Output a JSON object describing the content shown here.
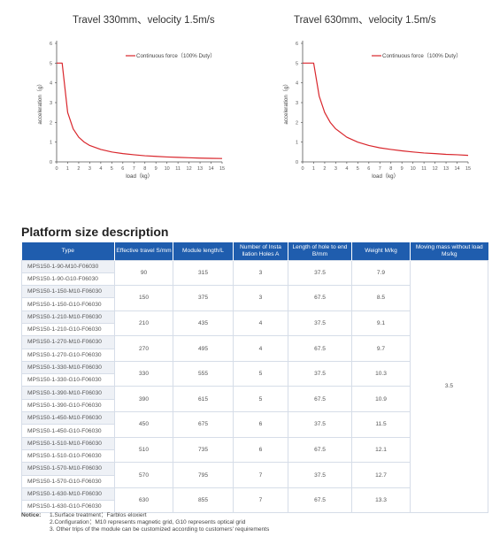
{
  "charts": [
    {
      "title": "Travel 330mm、velocity 1.5m/s",
      "xlabel": "load（kg）",
      "ylabel": "acceleration（g）",
      "legend": "Continuous force（100% Duty）",
      "line_color": "#d9262c",
      "chart_data": {
        "type": "line",
        "xlim": [
          0,
          15
        ],
        "ylim": [
          0,
          6
        ],
        "x_ticks": [
          "0",
          "1",
          "2",
          "3",
          "4",
          "5",
          "6",
          "7",
          "8",
          "9",
          "10",
          "11",
          "12",
          "13",
          "14",
          "15"
        ],
        "y_ticks": [
          "0",
          "1",
          "2",
          "3",
          "4",
          "5",
          "6"
        ],
        "series": [
          {
            "name": "Continuous force（100% Duty）",
            "x": [
              0,
              0.5,
              1,
              1.5,
              2,
              2.5,
              3,
              4,
              5,
              6,
              7,
              8,
              9,
              10,
              11,
              12,
              13,
              14,
              15
            ],
            "y": [
              5,
              5,
              2.5,
              1.67,
              1.25,
              1.0,
              0.83,
              0.63,
              0.5,
              0.42,
              0.36,
              0.31,
              0.28,
              0.25,
              0.23,
              0.21,
              0.19,
              0.18,
              0.17
            ]
          }
        ]
      }
    },
    {
      "title": "Travel 630mm、velocity 1.5m/s",
      "xlabel": "load（kg）",
      "ylabel": "acceleration（g）",
      "legend": "Continuous force（100% Duty）",
      "line_color": "#d9262c",
      "chart_data": {
        "type": "line",
        "xlim": [
          0,
          15
        ],
        "ylim": [
          0,
          6
        ],
        "x_ticks": [
          "0",
          "1",
          "2",
          "3",
          "4",
          "5",
          "6",
          "7",
          "8",
          "9",
          "10",
          "11",
          "12",
          "13",
          "14",
          "15"
        ],
        "y_ticks": [
          "0",
          "1",
          "2",
          "3",
          "4",
          "5",
          "6"
        ],
        "series": [
          {
            "name": "Continuous force（100% Duty）",
            "x": [
              0,
              1,
              1.5,
              2,
              2.5,
              3,
              4,
              5,
              6,
              7,
              8,
              9,
              10,
              11,
              12,
              13,
              14,
              15
            ],
            "y": [
              5,
              5,
              3.33,
              2.5,
              2.0,
              1.67,
              1.25,
              1.0,
              0.83,
              0.71,
              0.63,
              0.56,
              0.5,
              0.45,
              0.42,
              0.38,
              0.36,
              0.33
            ]
          }
        ]
      }
    }
  ],
  "section_title": "Platform size description",
  "table": {
    "headers": [
      "Type",
      "Effective travel S/mm",
      "Module length/L",
      "Number of Insta llation Holes A",
      "Length of hole to end B/mm",
      "Weight M/kg",
      "Moving mass without load Ms/kg"
    ],
    "moving_mass": "3.5",
    "groups": [
      {
        "types": [
          "MPS150-1-90-M10-F06030",
          "MPS150-1-90-G10-F06030"
        ],
        "travel": "90",
        "length": "315",
        "holes": "3",
        "hole_end": "37.5",
        "weight": "7.9"
      },
      {
        "types": [
          "MPS150-1-150-M10-F06030",
          "MPS150-1-150-G10-F06030"
        ],
        "travel": "150",
        "length": "375",
        "holes": "3",
        "hole_end": "67.5",
        "weight": "8.5"
      },
      {
        "types": [
          "MPS150-1-210-M10-F06030",
          "MPS150-1-210-G10-F06030"
        ],
        "travel": "210",
        "length": "435",
        "holes": "4",
        "hole_end": "37.5",
        "weight": "9.1"
      },
      {
        "types": [
          "MPS150-1-270-M10-F06030",
          "MPS150-1-270-G10-F06030"
        ],
        "travel": "270",
        "length": "495",
        "holes": "4",
        "hole_end": "67.5",
        "weight": "9.7"
      },
      {
        "types": [
          "MPS150-1-330-M10-F06030",
          "MPS150-1-330-G10-F06030"
        ],
        "travel": "330",
        "length": "555",
        "holes": "5",
        "hole_end": "37.5",
        "weight": "10.3"
      },
      {
        "types": [
          "MPS150-1-390-M10-F06030",
          "MPS150-1-390-G10-F06030"
        ],
        "travel": "390",
        "length": "615",
        "holes": "5",
        "hole_end": "67.5",
        "weight": "10.9"
      },
      {
        "types": [
          "MPS150-1-450-M10-F06030",
          "MPS150-1-450-G10-F06030"
        ],
        "travel": "450",
        "length": "675",
        "holes": "6",
        "hole_end": "37.5",
        "weight": "11.5"
      },
      {
        "types": [
          "MPS150-1-510-M10-F06030",
          "MPS150-1-510-G10-F06030"
        ],
        "travel": "510",
        "length": "735",
        "holes": "6",
        "hole_end": "67.5",
        "weight": "12.1"
      },
      {
        "types": [
          "MPS150-1-570-M10-F06030",
          "MPS150-1-570-G10-F06030"
        ],
        "travel": "570",
        "length": "795",
        "holes": "7",
        "hole_end": "37.5",
        "weight": "12.7"
      },
      {
        "types": [
          "MPS150-1-630-M10-F06030",
          "MPS150-1-630-G10-F06030"
        ],
        "travel": "630",
        "length": "855",
        "holes": "7",
        "hole_end": "67.5",
        "weight": "13.3"
      }
    ]
  },
  "notice": {
    "label": "Notice:",
    "items": [
      "1.Surface treatment：Farblos eloxiert",
      "2.Configuration：M10 represents magnetic grid, G10 represents optical grid",
      "3. Other trips of the module can be customized according to customers' requirements"
    ]
  }
}
